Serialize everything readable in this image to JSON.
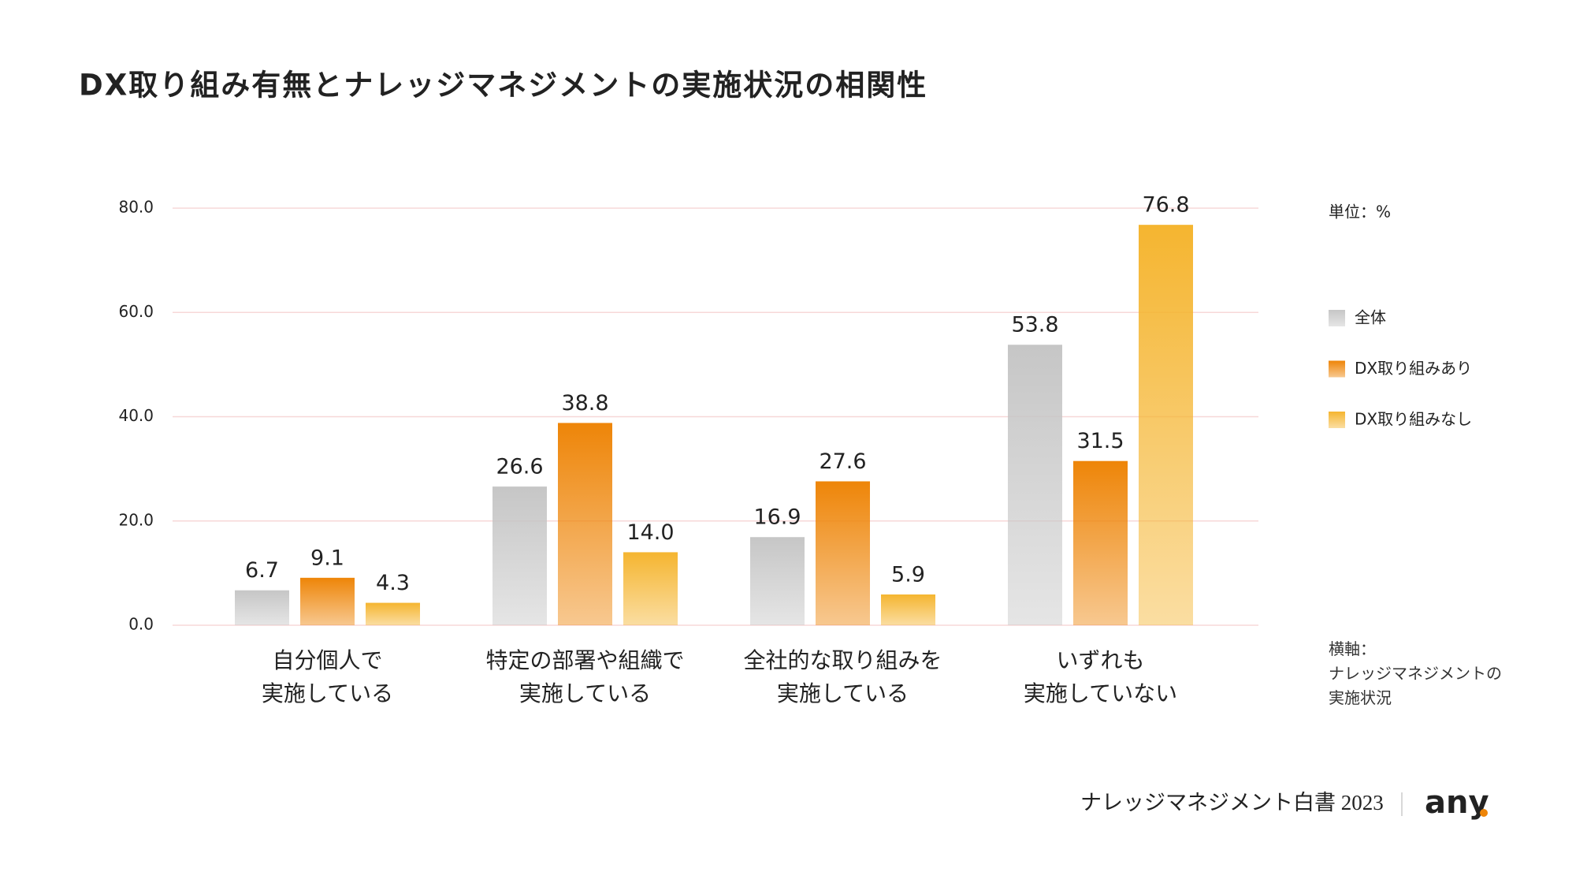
{
  "chart_data": {
    "type": "bar",
    "title": "DX取り組み有無とナレッジマネジメントの実施状況の相関性",
    "categories": [
      "自分個人で\n実施している",
      "特定の部署や組織で\n実施している",
      "全社的な取り組みを\n実施している",
      "いずれも\n実施していない"
    ],
    "series": [
      {
        "name": "全体",
        "color": "#c6c6c6",
        "values": [
          6.7,
          26.6,
          16.9,
          53.8
        ]
      },
      {
        "name": "DX取り組みあり",
        "color": "#ee8508",
        "values": [
          9.1,
          38.8,
          27.6,
          31.5
        ]
      },
      {
        "name": "DX取り組みなし",
        "color": "#f5b530",
        "values": [
          4.3,
          14.0,
          5.9,
          76.8
        ]
      }
    ],
    "value_labels": [
      [
        "6.7",
        "26.6",
        "16.9",
        "53.8"
      ],
      [
        "9.1",
        "38.8",
        "27.6",
        "31.5"
      ],
      [
        "4.3",
        "14.0",
        "5.9",
        "76.8"
      ]
    ],
    "ylim": [
      0,
      80
    ],
    "yticks": [
      {
        "value": 0,
        "label": "0.0"
      },
      {
        "value": 20,
        "label": "20.0"
      },
      {
        "value": 40,
        "label": "40.0"
      },
      {
        "value": 60,
        "label": "60.0"
      },
      {
        "value": 80,
        "label": "80.0"
      }
    ],
    "grid": true,
    "unit_note": "単位：%",
    "x_axis_note": "横軸：\nナレッジマネジメントの\n実施状況",
    "footer": "ナレッジマネジメント白書 2023",
    "logo": "any"
  }
}
